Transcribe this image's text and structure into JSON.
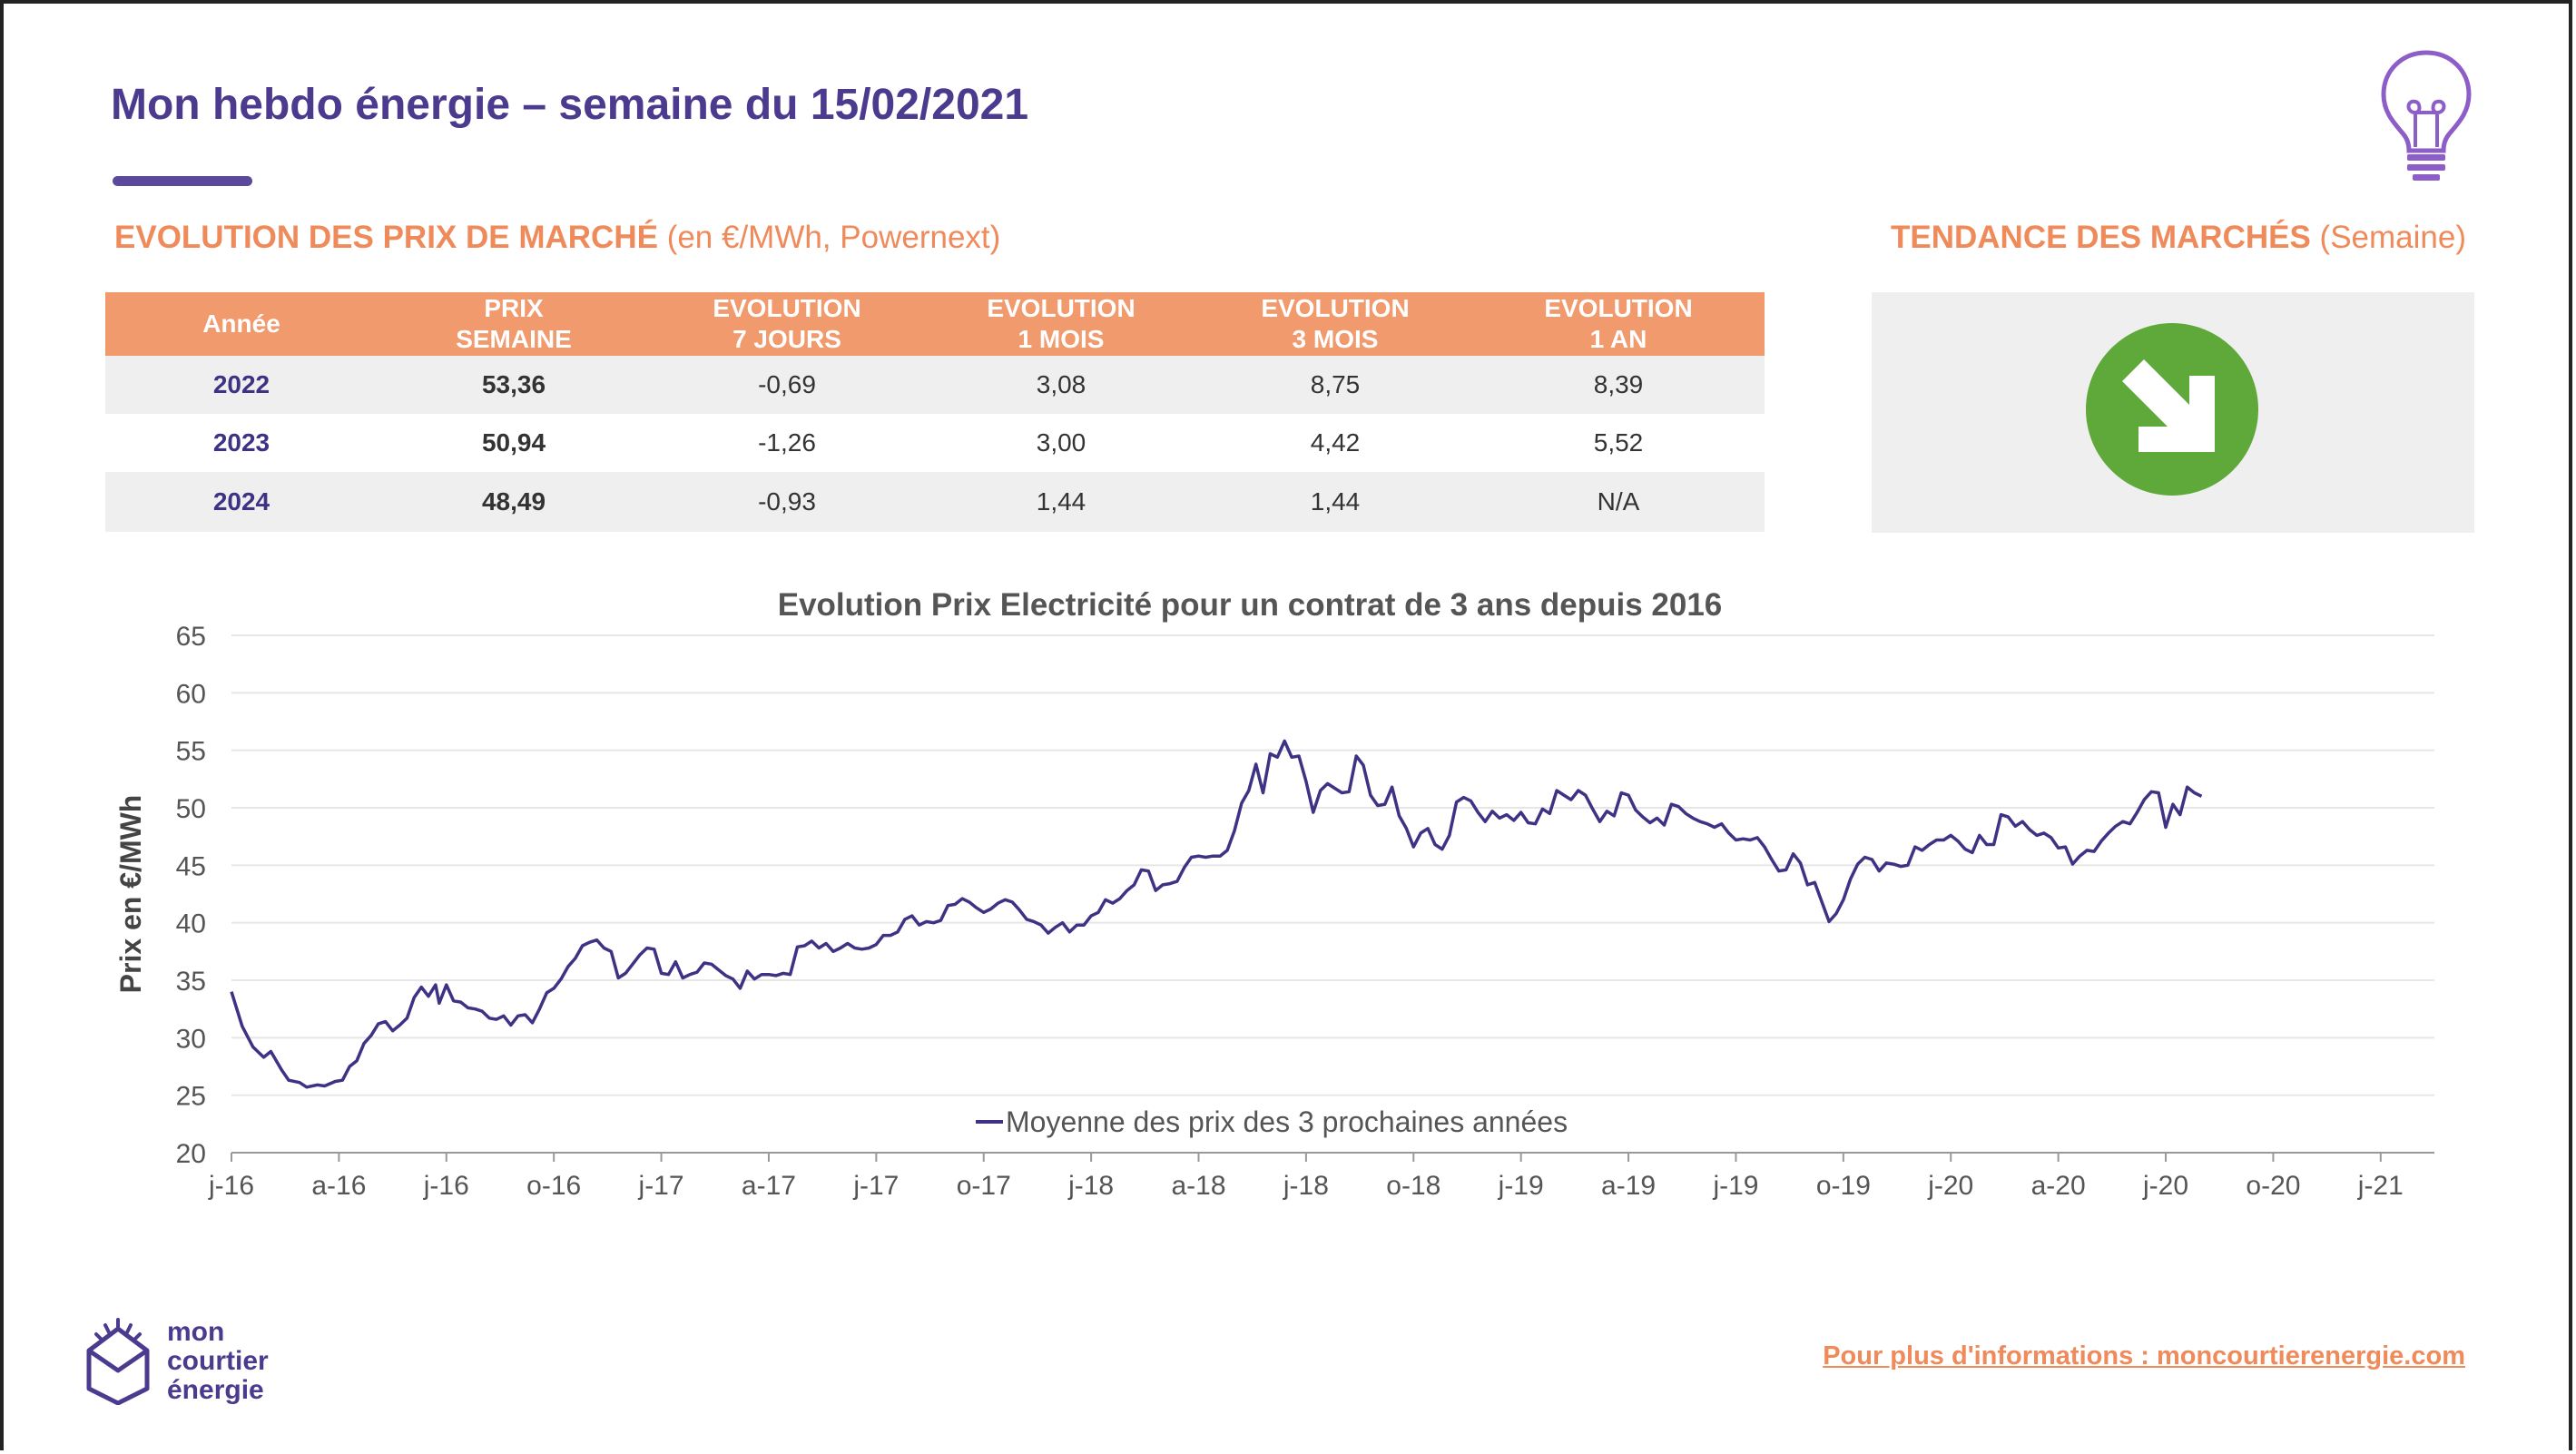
{
  "header": {
    "title": "Mon hebdo énergie – semaine du 15/02/2021"
  },
  "sections": {
    "prices_title_bold": "EVOLUTION DES PRIX DE MARCHÉ",
    "prices_title_rest": "(en €/MWh, Powernext)",
    "trend_title_bold": "TENDANCE DES MARCHÉS",
    "trend_title_rest": "(Semaine)"
  },
  "table": {
    "headers": [
      [
        "Année"
      ],
      [
        "PRIX",
        "SEMAINE"
      ],
      [
        "EVOLUTION",
        "7 JOURS"
      ],
      [
        "EVOLUTION",
        "1 MOIS"
      ],
      [
        "EVOLUTION",
        "3 MOIS"
      ],
      [
        "EVOLUTION",
        "1 AN"
      ]
    ],
    "rows": [
      [
        "2022",
        "53,36",
        "-0,69",
        "3,08",
        "8,75",
        "8,39"
      ],
      [
        "2023",
        "50,94",
        "-1,26",
        "3,00",
        "4,42",
        "5,52"
      ],
      [
        "2024",
        "48,49",
        "-0,93",
        "1,44",
        "1,44",
        "N/A"
      ]
    ]
  },
  "trend": {
    "direction": "down",
    "icon": "arrow-down-right-icon",
    "color": "#5fa83a"
  },
  "colors": {
    "title": "#4b3a8e",
    "accent": "#ef8a5a",
    "table_header": "#f19a6d",
    "series": "#3d3283"
  },
  "chart_data": {
    "type": "line",
    "title": "Evolution Prix Electricité pour un contrat de 3 ans depuis 2016",
    "ylabel": "Prix en €/MWh",
    "xlabel": "",
    "ylim": [
      20,
      65
    ],
    "yticks": [
      20,
      25,
      30,
      35,
      40,
      45,
      50,
      55,
      60,
      65
    ],
    "grid": true,
    "legend": "bottom-center",
    "x_ticks": [
      {
        "label": "j-16",
        "x": 0
      },
      {
        "label": "a-16",
        "x": 3
      },
      {
        "label": "j-16",
        "x": 6
      },
      {
        "label": "o-16",
        "x": 9
      },
      {
        "label": "j-17",
        "x": 12
      },
      {
        "label": "a-17",
        "x": 15
      },
      {
        "label": "j-17",
        "x": 18
      },
      {
        "label": "o-17",
        "x": 21
      },
      {
        "label": "j-18",
        "x": 24
      },
      {
        "label": "a-18",
        "x": 27
      },
      {
        "label": "j-18",
        "x": 30
      },
      {
        "label": "o-18",
        "x": 33
      },
      {
        "label": "j-19",
        "x": 36
      },
      {
        "label": "a-19",
        "x": 39
      },
      {
        "label": "j-19",
        "x": 42
      },
      {
        "label": "o-19",
        "x": 45
      },
      {
        "label": "j-20",
        "x": 48
      },
      {
        "label": "a-20",
        "x": 51
      },
      {
        "label": "j-20",
        "x": 54
      },
      {
        "label": "o-20",
        "x": 57
      },
      {
        "label": "j-21",
        "x": 60
      }
    ],
    "x_max": 61.5,
    "series": [
      {
        "name": "Moyenne des prix des 3 prochaines années",
        "points": [
          [
            0,
            34
          ],
          [
            0.3,
            31
          ],
          [
            0.6,
            29.2
          ],
          [
            0.9,
            28.3
          ],
          [
            1.1,
            28.8
          ],
          [
            1.4,
            27.2
          ],
          [
            1.6,
            26.3
          ],
          [
            1.9,
            26.1
          ],
          [
            2.1,
            25.7
          ],
          [
            2.4,
            25.9
          ],
          [
            2.6,
            25.8
          ],
          [
            2.9,
            26.2
          ],
          [
            3.1,
            26.3
          ],
          [
            3.3,
            27.5
          ],
          [
            3.5,
            28
          ],
          [
            3.7,
            29.5
          ],
          [
            3.9,
            30.2
          ],
          [
            4.1,
            31.2
          ],
          [
            4.3,
            31.4
          ],
          [
            4.5,
            30.6
          ],
          [
            4.7,
            31.1
          ],
          [
            4.9,
            31.7
          ],
          [
            5.1,
            33.5
          ],
          [
            5.3,
            34.4
          ],
          [
            5.5,
            33.6
          ],
          [
            5.7,
            34.6
          ],
          [
            5.8,
            33
          ],
          [
            6.0,
            34.6
          ],
          [
            6.2,
            33.2
          ],
          [
            6.4,
            33.1
          ],
          [
            6.6,
            32.6
          ],
          [
            6.8,
            32.5
          ],
          [
            7.0,
            32.3
          ],
          [
            7.2,
            31.7
          ],
          [
            7.4,
            31.6
          ],
          [
            7.6,
            31.9
          ],
          [
            7.8,
            31.1
          ],
          [
            8.0,
            31.9
          ],
          [
            8.2,
            32
          ],
          [
            8.4,
            31.3
          ],
          [
            8.6,
            32.5
          ],
          [
            8.8,
            33.9
          ],
          [
            9.0,
            34.3
          ],
          [
            9.2,
            35.1
          ],
          [
            9.4,
            36.2
          ],
          [
            9.6,
            36.9
          ],
          [
            9.8,
            38
          ],
          [
            10.0,
            38.3
          ],
          [
            10.2,
            38.5
          ],
          [
            10.4,
            37.8
          ],
          [
            10.6,
            37.5
          ],
          [
            10.8,
            35.2
          ],
          [
            11.0,
            35.6
          ],
          [
            11.2,
            36.4
          ],
          [
            11.4,
            37.2
          ],
          [
            11.6,
            37.8
          ],
          [
            11.8,
            37.7
          ],
          [
            12.0,
            35.6
          ],
          [
            12.2,
            35.5
          ],
          [
            12.4,
            36.6
          ],
          [
            12.6,
            35.2
          ],
          [
            12.8,
            35.5
          ],
          [
            13.0,
            35.7
          ],
          [
            13.2,
            36.5
          ],
          [
            13.4,
            36.4
          ],
          [
            13.6,
            35.9
          ],
          [
            13.8,
            35.4
          ],
          [
            14.0,
            35.1
          ],
          [
            14.2,
            34.3
          ],
          [
            14.4,
            35.8
          ],
          [
            14.6,
            35.1
          ],
          [
            14.8,
            35.5
          ],
          [
            15.0,
            35.5
          ],
          [
            15.2,
            35.4
          ],
          [
            15.4,
            35.6
          ],
          [
            15.6,
            35.5
          ],
          [
            15.8,
            37.9
          ],
          [
            16.0,
            38
          ],
          [
            16.2,
            38.4
          ],
          [
            16.4,
            37.8
          ],
          [
            16.6,
            38.2
          ],
          [
            16.8,
            37.5
          ],
          [
            17.0,
            37.8
          ],
          [
            17.2,
            38.2
          ],
          [
            17.4,
            37.8
          ],
          [
            17.6,
            37.7
          ],
          [
            17.8,
            37.8
          ],
          [
            18.0,
            38.1
          ],
          [
            18.2,
            38.9
          ],
          [
            18.4,
            38.9
          ],
          [
            18.6,
            39.2
          ],
          [
            18.8,
            40.3
          ],
          [
            19.0,
            40.6
          ],
          [
            19.2,
            39.8
          ],
          [
            19.4,
            40.1
          ],
          [
            19.6,
            40
          ],
          [
            19.8,
            40.2
          ],
          [
            20.0,
            41.5
          ],
          [
            20.2,
            41.6
          ],
          [
            20.4,
            42.1
          ],
          [
            20.6,
            41.8
          ],
          [
            20.8,
            41.3
          ],
          [
            21.0,
            40.9
          ],
          [
            21.2,
            41.2
          ],
          [
            21.4,
            41.7
          ],
          [
            21.6,
            42
          ],
          [
            21.8,
            41.8
          ],
          [
            22.0,
            41.1
          ],
          [
            22.2,
            40.3
          ],
          [
            22.4,
            40.1
          ],
          [
            22.6,
            39.8
          ],
          [
            22.8,
            39.1
          ],
          [
            23.0,
            39.6
          ],
          [
            23.2,
            40
          ],
          [
            23.4,
            39.2
          ],
          [
            23.6,
            39.8
          ],
          [
            23.8,
            39.8
          ],
          [
            24.0,
            40.6
          ],
          [
            24.2,
            40.9
          ],
          [
            24.4,
            42
          ],
          [
            24.6,
            41.7
          ],
          [
            24.8,
            42.1
          ],
          [
            25.0,
            42.8
          ],
          [
            25.2,
            43.3
          ],
          [
            25.4,
            44.6
          ],
          [
            25.6,
            44.5
          ],
          [
            25.8,
            42.8
          ],
          [
            26.0,
            43.3
          ],
          [
            26.2,
            43.4
          ],
          [
            26.4,
            43.6
          ],
          [
            26.6,
            44.8
          ],
          [
            26.8,
            45.7
          ],
          [
            27.0,
            45.8
          ],
          [
            27.2,
            45.7
          ],
          [
            27.4,
            45.8
          ],
          [
            27.6,
            45.8
          ],
          [
            27.8,
            46.3
          ],
          [
            28.0,
            48
          ],
          [
            28.2,
            50.4
          ],
          [
            28.4,
            51.5
          ],
          [
            28.6,
            53.8
          ],
          [
            28.8,
            51.3
          ],
          [
            29.0,
            54.7
          ],
          [
            29.2,
            54.4
          ],
          [
            29.4,
            55.8
          ],
          [
            29.6,
            54.4
          ],
          [
            29.8,
            54.5
          ],
          [
            30.0,
            52.3
          ],
          [
            30.2,
            49.6
          ],
          [
            30.4,
            51.5
          ],
          [
            30.6,
            52.1
          ],
          [
            30.8,
            51.7
          ],
          [
            31.0,
            51.3
          ],
          [
            31.2,
            51.4
          ],
          [
            31.4,
            54.5
          ],
          [
            31.6,
            53.7
          ],
          [
            31.8,
            51.1
          ],
          [
            32.0,
            50.2
          ],
          [
            32.2,
            50.3
          ],
          [
            32.4,
            51.8
          ],
          [
            32.6,
            49.3
          ],
          [
            32.8,
            48.2
          ],
          [
            33.0,
            46.6
          ],
          [
            33.2,
            47.8
          ],
          [
            33.4,
            48.2
          ],
          [
            33.6,
            46.8
          ],
          [
            33.8,
            46.4
          ],
          [
            34.0,
            47.6
          ],
          [
            34.2,
            50.5
          ],
          [
            34.4,
            50.9
          ],
          [
            34.6,
            50.6
          ],
          [
            34.8,
            49.6
          ],
          [
            35.0,
            48.8
          ],
          [
            35.2,
            49.7
          ],
          [
            35.4,
            49.1
          ],
          [
            35.6,
            49.4
          ],
          [
            35.8,
            48.9
          ],
          [
            36.0,
            49.6
          ],
          [
            36.2,
            48.7
          ],
          [
            36.4,
            48.6
          ],
          [
            36.6,
            49.9
          ],
          [
            36.8,
            49.5
          ],
          [
            37.0,
            51.5
          ],
          [
            37.2,
            51.1
          ],
          [
            37.4,
            50.7
          ],
          [
            37.6,
            51.5
          ],
          [
            37.8,
            51.1
          ],
          [
            38.0,
            49.9
          ],
          [
            38.2,
            48.8
          ],
          [
            38.4,
            49.7
          ],
          [
            38.6,
            49.3
          ],
          [
            38.8,
            51.3
          ],
          [
            39.0,
            51.1
          ],
          [
            39.2,
            49.8
          ],
          [
            39.4,
            49.2
          ],
          [
            39.6,
            48.7
          ],
          [
            39.8,
            49.1
          ],
          [
            40.0,
            48.5
          ],
          [
            40.2,
            50.3
          ],
          [
            40.4,
            50.1
          ],
          [
            40.6,
            49.5
          ],
          [
            40.8,
            49.1
          ],
          [
            41.0,
            48.8
          ],
          [
            41.2,
            48.6
          ],
          [
            41.4,
            48.3
          ],
          [
            41.6,
            48.6
          ],
          [
            41.8,
            47.8
          ],
          [
            42.0,
            47.2
          ],
          [
            42.2,
            47.3
          ],
          [
            42.4,
            47.2
          ],
          [
            42.6,
            47.4
          ],
          [
            42.8,
            46.6
          ],
          [
            43.0,
            45.5
          ],
          [
            43.2,
            44.5
          ],
          [
            43.4,
            44.6
          ],
          [
            43.6,
            46
          ],
          [
            43.8,
            45.2
          ],
          [
            44.0,
            43.3
          ],
          [
            44.2,
            43.5
          ],
          [
            44.4,
            41.8
          ],
          [
            44.6,
            40.1
          ],
          [
            44.8,
            40.8
          ],
          [
            45.0,
            42
          ],
          [
            45.2,
            43.8
          ],
          [
            45.4,
            45.1
          ],
          [
            45.6,
            45.7
          ],
          [
            45.8,
            45.5
          ],
          [
            46.0,
            44.5
          ],
          [
            46.2,
            45.2
          ],
          [
            46.4,
            45.1
          ],
          [
            46.6,
            44.9
          ],
          [
            46.8,
            45
          ],
          [
            47.0,
            46.6
          ],
          [
            47.2,
            46.3
          ],
          [
            47.4,
            46.8
          ],
          [
            47.6,
            47.2
          ],
          [
            47.8,
            47.2
          ],
          [
            48.0,
            47.6
          ],
          [
            48.2,
            47.1
          ],
          [
            48.4,
            46.4
          ],
          [
            48.6,
            46.1
          ],
          [
            48.8,
            47.6
          ],
          [
            49.0,
            46.8
          ],
          [
            49.2,
            46.8
          ],
          [
            49.4,
            49.4
          ],
          [
            49.6,
            49.2
          ],
          [
            49.8,
            48.4
          ],
          [
            50.0,
            48.8
          ],
          [
            50.2,
            48.1
          ],
          [
            50.4,
            47.6
          ],
          [
            50.6,
            47.8
          ],
          [
            50.8,
            47.4
          ],
          [
            51.0,
            46.5
          ],
          [
            51.2,
            46.6
          ],
          [
            51.4,
            45.1
          ],
          [
            51.6,
            45.8
          ],
          [
            51.8,
            46.3
          ],
          [
            52.0,
            46.2
          ],
          [
            52.2,
            47.1
          ],
          [
            52.4,
            47.8
          ],
          [
            52.6,
            48.4
          ],
          [
            52.8,
            48.8
          ],
          [
            53.0,
            48.6
          ],
          [
            53.2,
            49.6
          ],
          [
            53.4,
            50.7
          ],
          [
            53.6,
            51.4
          ],
          [
            53.8,
            51.3
          ],
          [
            54.0,
            48.3
          ],
          [
            54.2,
            50.3
          ],
          [
            54.4,
            49.4
          ],
          [
            54.6,
            51.8
          ],
          [
            54.8,
            51.3
          ],
          [
            55.0,
            51
          ]
        ]
      }
    ]
  },
  "footer": {
    "brand_lines": [
      "mon",
      "courtier",
      "énergie"
    ],
    "link": "Pour plus d'informations : moncourtierenergie.com"
  }
}
